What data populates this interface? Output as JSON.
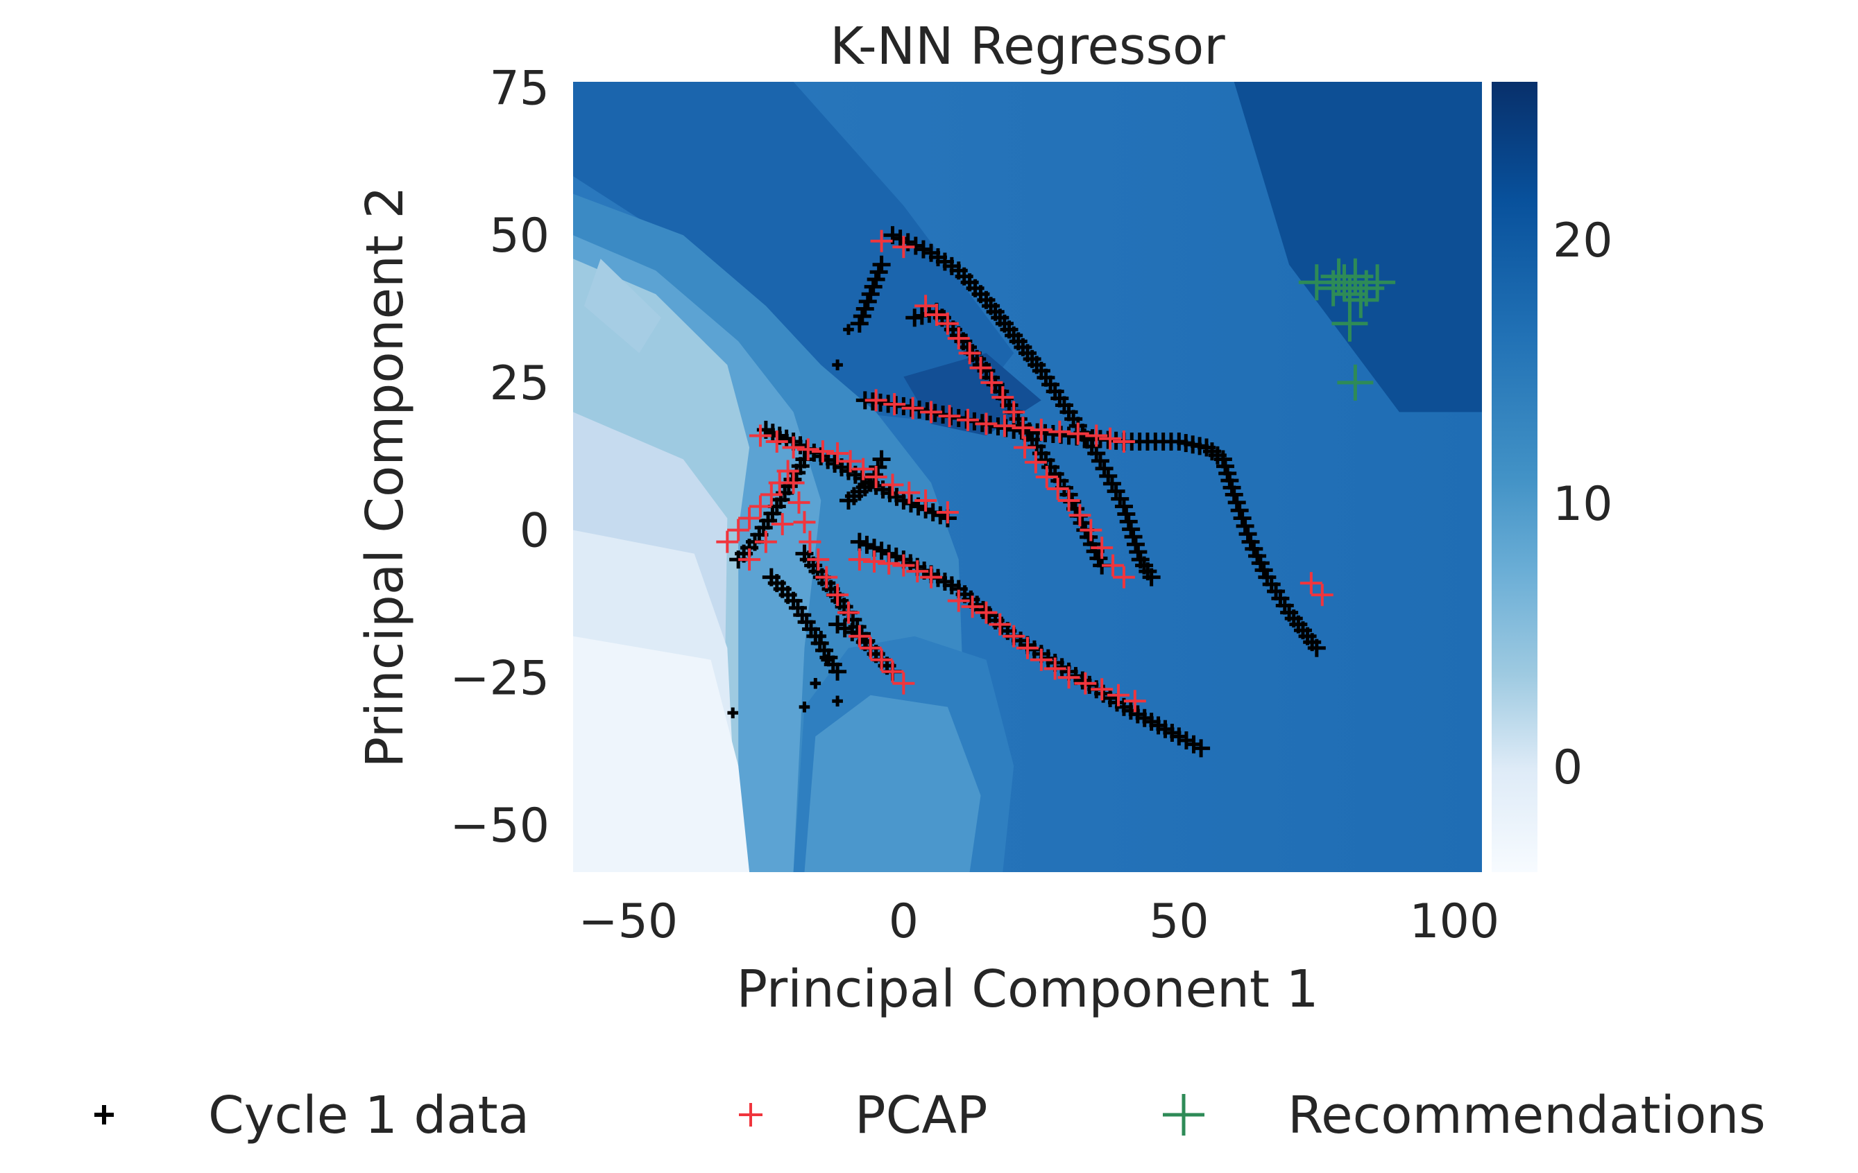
{
  "chart_data": {
    "type": "scatter",
    "title": "K-NN Regressor",
    "xlabel": "Principal Component 1",
    "ylabel": "Principal Component 2",
    "xlim": [
      -60,
      105
    ],
    "ylim": [
      -58,
      76
    ],
    "xticks": [
      -50,
      0,
      50,
      100
    ],
    "yticks": [
      75,
      50,
      25,
      0,
      -25,
      -50
    ],
    "xtick_labels": [
      "−50",
      "0",
      "50",
      "100"
    ],
    "ytick_labels": [
      "75",
      "50",
      "25",
      "0",
      "−25",
      "−50"
    ],
    "grid": false,
    "background": "filled contour of K-NN regression prediction (Blues colormap)",
    "colorbar": {
      "colormap": "Blues",
      "range": [
        -4,
        26
      ],
      "ticks": [
        0,
        10,
        20
      ],
      "tick_labels": [
        "0",
        "10",
        "20"
      ]
    },
    "legend_position": "bottom",
    "series": [
      {
        "name": "Cycle 1 data",
        "marker": "+",
        "color": "#000000",
        "tracks": [
          [
            [
              -2,
              50
            ],
            [
              5,
              47
            ],
            [
              10,
              44
            ],
            [
              15,
              39
            ],
            [
              20,
              33
            ],
            [
              25,
              27
            ],
            [
              30,
              20
            ],
            [
              35,
              13
            ],
            [
              40,
              4
            ],
            [
              43,
              -5
            ],
            [
              45,
              -8
            ]
          ],
          [
            [
              2,
              36
            ],
            [
              6,
              37
            ],
            [
              10,
              33
            ],
            [
              15,
              27
            ],
            [
              20,
              20
            ],
            [
              25,
              13
            ],
            [
              30,
              6
            ],
            [
              33,
              0
            ],
            [
              36,
              -6
            ]
          ],
          [
            [
              -7,
              22
            ],
            [
              0,
              21
            ],
            [
              10,
              19
            ],
            [
              20,
              17
            ],
            [
              30,
              16
            ],
            [
              40,
              15
            ],
            [
              50,
              15
            ],
            [
              55,
              14
            ],
            [
              58,
              12
            ],
            [
              60,
              6
            ],
            [
              63,
              -2
            ],
            [
              66,
              -8
            ],
            [
              70,
              -14
            ],
            [
              75,
              -20
            ]
          ],
          [
            [
              -25,
              17
            ],
            [
              -20,
              15
            ],
            [
              -10,
              10
            ],
            [
              0,
              5
            ],
            [
              8,
              2
            ]
          ],
          [
            [
              -30,
              -5
            ],
            [
              -27,
              -2
            ],
            [
              -23,
              4
            ],
            [
              -18,
              12
            ]
          ],
          [
            [
              -24,
              -8
            ],
            [
              -20,
              -12
            ],
            [
              -16,
              -18
            ],
            [
              -12,
              -24
            ]
          ],
          [
            [
              -18,
              -4
            ],
            [
              -14,
              -9
            ],
            [
              -10,
              -14
            ],
            [
              -6,
              -20
            ],
            [
              -2,
              -24
            ]
          ],
          [
            [
              -12,
              -16
            ],
            [
              -8,
              -18
            ],
            [
              -4,
              -22
            ]
          ],
          [
            [
              -8,
              -2
            ],
            [
              0,
              -5
            ],
            [
              10,
              -10
            ],
            [
              20,
              -18
            ],
            [
              30,
              -24
            ],
            [
              40,
              -30
            ],
            [
              50,
              -35
            ],
            [
              54,
              -37
            ]
          ],
          [
            [
              -10,
              5
            ],
            [
              -6,
              8
            ],
            [
              -4,
              12
            ]
          ],
          [
            [
              -8,
              35
            ],
            [
              -6,
              40
            ],
            [
              -4,
              45
            ]
          ]
        ],
        "outliers": [
          [
            -31,
            -31
          ],
          [
            -18,
            -30
          ],
          [
            -16,
            -26
          ],
          [
            -12,
            -29
          ],
          [
            -14,
            -22
          ],
          [
            -15,
            -18
          ],
          [
            -10,
            34
          ],
          [
            -12,
            28
          ]
        ]
      },
      {
        "name": "PCAP",
        "marker": "+",
        "color": "#f0353d",
        "tracks": [
          [
            [
              -4,
              49
            ],
            [
              0,
              48
            ]
          ],
          [
            [
              4,
              38
            ],
            [
              8,
              35
            ],
            [
              12,
              30
            ],
            [
              16,
              25
            ],
            [
              20,
              20
            ]
          ],
          [
            [
              -5,
              22
            ],
            [
              5,
              20
            ],
            [
              15,
              18
            ],
            [
              25,
              17
            ],
            [
              35,
              16
            ],
            [
              40,
              15
            ]
          ],
          [
            [
              -26,
              16
            ],
            [
              -20,
              14
            ],
            [
              -12,
              13
            ],
            [
              -5,
              9
            ],
            [
              4,
              5
            ],
            [
              8,
              3
            ]
          ],
          [
            [
              -32,
              -2
            ],
            [
              -28,
              2
            ],
            [
              -24,
              6
            ],
            [
              -21,
              10
            ]
          ],
          [
            [
              -28,
              -5
            ],
            [
              -25,
              -2
            ],
            [
              -22,
              1
            ]
          ],
          [
            [
              -20,
              8
            ],
            [
              -17,
              -2
            ],
            [
              -14,
              -8
            ],
            [
              -10,
              -14
            ],
            [
              -8,
              -18
            ],
            [
              -4,
              -22
            ],
            [
              0,
              -26
            ]
          ],
          [
            [
              -8,
              -5
            ],
            [
              0,
              -6
            ],
            [
              5,
              -8
            ]
          ],
          [
            [
              10,
              -12
            ],
            [
              15,
              -14
            ],
            [
              20,
              -18
            ],
            [
              25,
              -22
            ],
            [
              30,
              -25
            ],
            [
              36,
              -27
            ],
            [
              42,
              -29
            ]
          ],
          [
            [
              22,
              14
            ],
            [
              26,
              9
            ],
            [
              30,
              5
            ],
            [
              34,
              0
            ],
            [
              38,
              -6
            ],
            [
              40,
              -8
            ]
          ],
          [
            [
              74,
              -9
            ],
            [
              76,
              -11
            ]
          ]
        ],
        "outliers": []
      },
      {
        "name": "Recommendations",
        "marker": "+",
        "color": "#2e8b57",
        "points": [
          [
            75,
            42
          ],
          [
            78,
            41
          ],
          [
            79,
            43
          ],
          [
            80,
            42
          ],
          [
            81,
            40
          ],
          [
            81,
            35
          ],
          [
            82,
            43
          ],
          [
            82,
            25
          ],
          [
            83,
            39
          ],
          [
            84,
            41
          ],
          [
            86,
            42
          ]
        ]
      }
    ]
  }
}
